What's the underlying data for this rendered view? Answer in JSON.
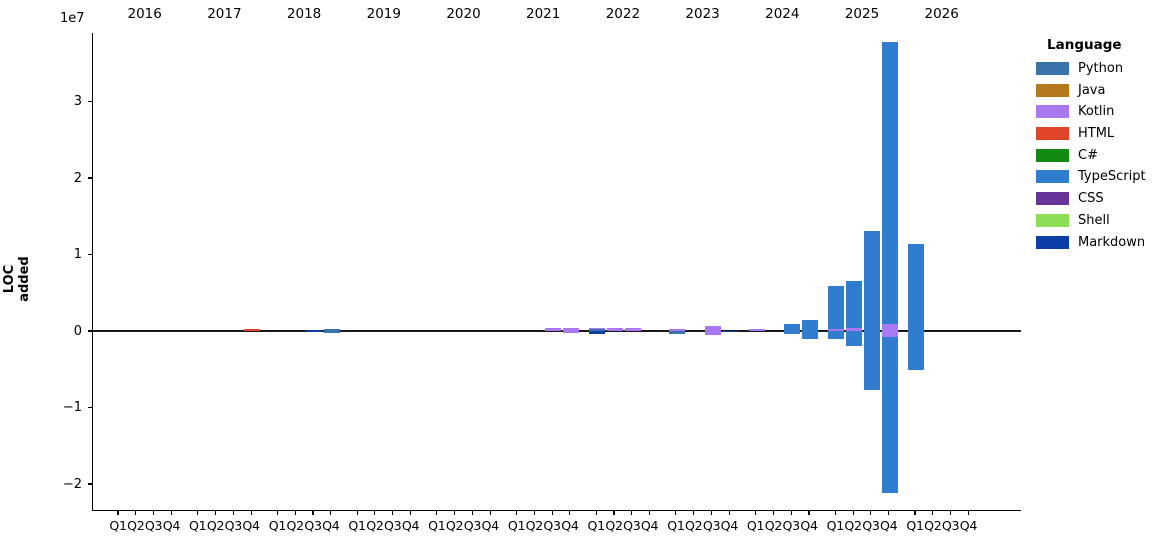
{
  "chart_data": {
    "type": "bar",
    "subtype": "stacked-diverging",
    "title": "",
    "ylabel": "LOC added",
    "xlabel": "",
    "y_offset_label": "1e7",
    "y_ticks_1e7": [
      3,
      2,
      1,
      0,
      -1,
      -2
    ],
    "y_tick_labels": [
      "3",
      "2",
      "1",
      "0",
      "−1",
      "−2"
    ],
    "ylim_1e7": [
      -2.34,
      3.9
    ],
    "grid": false,
    "zero_line": true,
    "legend_position": "right-outside",
    "years": [
      "2016",
      "2017",
      "2018",
      "2019",
      "2020",
      "2021",
      "2022",
      "2023",
      "2024",
      "2025",
      "2026"
    ],
    "quarter_labels": [
      "Q1",
      "Q2",
      "Q3",
      "Q4"
    ],
    "legend_title": "Language",
    "legend": [
      {
        "label": "Python",
        "color": "#3A73A9"
      },
      {
        "label": "Java",
        "color": "#B5791D"
      },
      {
        "label": "Kotlin",
        "color": "#A979F2"
      },
      {
        "label": "HTML",
        "color": "#E0452A"
      },
      {
        "label": "C#",
        "color": "#128A12"
      },
      {
        "label": "TypeScript",
        "color": "#307CCE"
      },
      {
        "label": "CSS",
        "color": "#663399"
      },
      {
        "label": "Shell",
        "color": "#8BDE55"
      },
      {
        "label": "Markdown",
        "color": "#0D3EA8"
      }
    ],
    "values_unit": "millions of LOC (1e6)",
    "bars": [
      {
        "year": 2017,
        "quarter": "Q4",
        "pos": [
          {
            "language": "HTML",
            "value": 0.25
          }
        ],
        "neg": []
      },
      {
        "year": 2018,
        "quarter": "Q3",
        "pos": [
          {
            "language": "Markdown",
            "value": 0.08
          }
        ],
        "neg": [
          {
            "language": "Markdown",
            "value": 0.08
          }
        ]
      },
      {
        "year": 2018,
        "quarter": "Q4",
        "pos": [
          {
            "language": "Python",
            "value": 0.3
          }
        ],
        "neg": [
          {
            "language": "Python",
            "value": 0.2
          }
        ]
      },
      {
        "year": 2021,
        "quarter": "Q3",
        "pos": [
          {
            "language": "Kotlin",
            "value": 0.35
          }
        ],
        "neg": []
      },
      {
        "year": 2021,
        "quarter": "Q4",
        "pos": [
          {
            "language": "Kotlin",
            "value": 0.4
          }
        ],
        "neg": [
          {
            "language": "Kotlin",
            "value": 0.3
          }
        ]
      },
      {
        "year": 2022,
        "quarter": "Q1",
        "pos": [
          {
            "language": "Python",
            "value": 0.2
          },
          {
            "language": "Kotlin",
            "value": 0.25
          }
        ],
        "neg": [
          {
            "language": "Markdown",
            "value": 0.4
          }
        ]
      },
      {
        "year": 2022,
        "quarter": "Q2",
        "pos": [
          {
            "language": "Kotlin",
            "value": 0.4
          }
        ],
        "neg": []
      },
      {
        "year": 2022,
        "quarter": "Q3",
        "pos": [
          {
            "language": "Kotlin",
            "value": 0.45
          }
        ],
        "neg": []
      },
      {
        "year": 2023,
        "quarter": "Q1",
        "pos": [
          {
            "language": "Kotlin",
            "value": 0.25
          }
        ],
        "neg": [
          {
            "language": "Python",
            "value": 0.4
          }
        ]
      },
      {
        "year": 2023,
        "quarter": "Q3",
        "pos": [
          {
            "language": "Kotlin",
            "value": 0.6
          }
        ],
        "neg": [
          {
            "language": "Kotlin",
            "value": 0.55
          }
        ]
      },
      {
        "year": 2023,
        "quarter": "Q4",
        "pos": [],
        "neg": [
          {
            "language": "Markdown",
            "value": 0.12
          }
        ]
      },
      {
        "year": 2024,
        "quarter": "Q1",
        "pos": [
          {
            "language": "Kotlin",
            "value": 0.22
          }
        ],
        "neg": []
      },
      {
        "year": 2024,
        "quarter": "Q3",
        "pos": [
          {
            "language": "TypeScript",
            "value": 0.85
          }
        ],
        "neg": [
          {
            "language": "TypeScript",
            "value": 0.4
          }
        ]
      },
      {
        "year": 2024,
        "quarter": "Q4",
        "pos": [
          {
            "language": "TypeScript",
            "value": 1.5
          }
        ],
        "neg": [
          {
            "language": "TypeScript",
            "value": 1.0
          }
        ]
      },
      {
        "year": 2025,
        "quarter": "Q1",
        "pos": [
          {
            "language": "Kotlin",
            "value": 0.3
          },
          {
            "language": "TypeScript",
            "value": 5.6
          }
        ],
        "neg": [
          {
            "language": "TypeScript",
            "value": 1.1
          }
        ]
      },
      {
        "year": 2025,
        "quarter": "Q2",
        "pos": [
          {
            "language": "Kotlin",
            "value": 0.4
          },
          {
            "language": "TypeScript",
            "value": 6.1
          }
        ],
        "neg": [
          {
            "language": "TypeScript",
            "value": 2.0
          }
        ]
      },
      {
        "year": 2025,
        "quarter": "Q3",
        "pos": [
          {
            "language": "TypeScript",
            "value": 13.1
          }
        ],
        "neg": [
          {
            "language": "TypeScript",
            "value": 7.7
          }
        ]
      },
      {
        "year": 2025,
        "quarter": "Q4",
        "pos": [
          {
            "language": "Kotlin",
            "value": 0.85
          },
          {
            "language": "TypeScript",
            "value": 36.95
          }
        ],
        "neg": [
          {
            "language": "Kotlin",
            "value": 0.8
          },
          {
            "language": "TypeScript",
            "value": 20.4
          }
        ]
      },
      {
        "year": 2026,
        "quarter": "Q1",
        "pos": [
          {
            "language": "TypeScript",
            "value": 11.4
          }
        ],
        "neg": [
          {
            "language": "TypeScript",
            "value": 5.1
          }
        ]
      }
    ]
  }
}
